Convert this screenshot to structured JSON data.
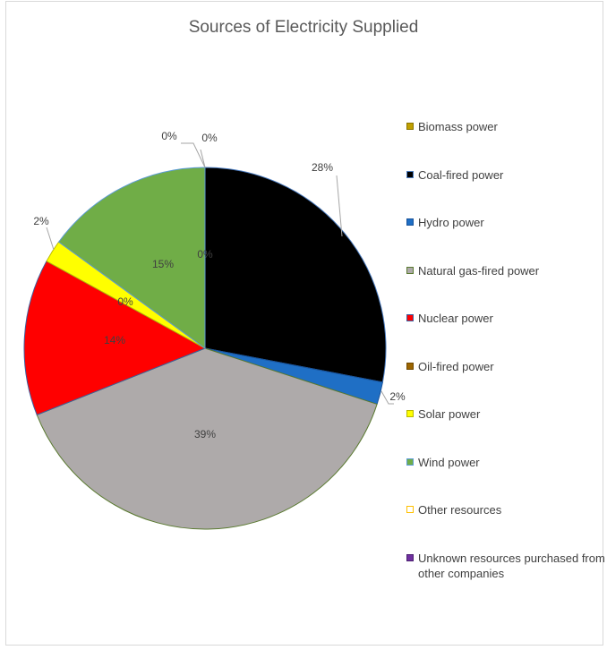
{
  "chart_data": {
    "type": "pie",
    "title": "Sources of Electricity Supplied",
    "legend_position": "right",
    "series": [
      {
        "name": "Biomass power",
        "value": 0,
        "label": "0%",
        "color": "#c0a000",
        "border": "#8a7400"
      },
      {
        "name": "Coal-fired power",
        "value": 28,
        "label": "28%",
        "color": "#000000",
        "border": "#4a7bbf"
      },
      {
        "name": "Hydro power",
        "value": 2,
        "label": "2%",
        "color": "#1f6fc5",
        "border": "#17529a"
      },
      {
        "name": "Natural gas-fired power",
        "value": 39,
        "label": "39%",
        "color": "#aeaaaa",
        "border": "#5a7a30"
      },
      {
        "name": "Nuclear power",
        "value": 14,
        "label": "14%",
        "color": "#ff0000",
        "border": "#3a5fa0"
      },
      {
        "name": "Oil-fired power",
        "value": 0,
        "label": "0%",
        "color": "#9c6500",
        "border": "#704800"
      },
      {
        "name": "Solar power",
        "value": 2,
        "label": "2%",
        "color": "#ffff00",
        "border": "#b8b800"
      },
      {
        "name": "Wind power",
        "value": 15,
        "label": "15%",
        "color": "#70ad47",
        "border": "#5b9bd5"
      },
      {
        "name": "Other resources",
        "value": 0,
        "label": "0%",
        "color": "#ffffff",
        "border": "#ffc000"
      },
      {
        "name": "Unknown resources purchased from other companies",
        "value": 0,
        "label": "0%",
        "color": "#7030a0",
        "border": "#4a2070"
      }
    ],
    "data_labels": [
      {
        "text": "0%",
        "series": "Biomass power"
      },
      {
        "text": "28%",
        "series": "Coal-fired power"
      },
      {
        "text": "2%",
        "series": "Hydro power"
      },
      {
        "text": "39%",
        "series": "Natural gas-fired power"
      },
      {
        "text": "14%",
        "series": "Nuclear power"
      },
      {
        "text": "0%",
        "series": "Oil-fired power"
      },
      {
        "text": "2%",
        "series": "Solar power"
      },
      {
        "text": "15%",
        "series": "Wind power"
      },
      {
        "text": "0%",
        "series": "Other resources"
      },
      {
        "text": "0%",
        "series": "Unknown resources purchased from other companies"
      }
    ]
  }
}
